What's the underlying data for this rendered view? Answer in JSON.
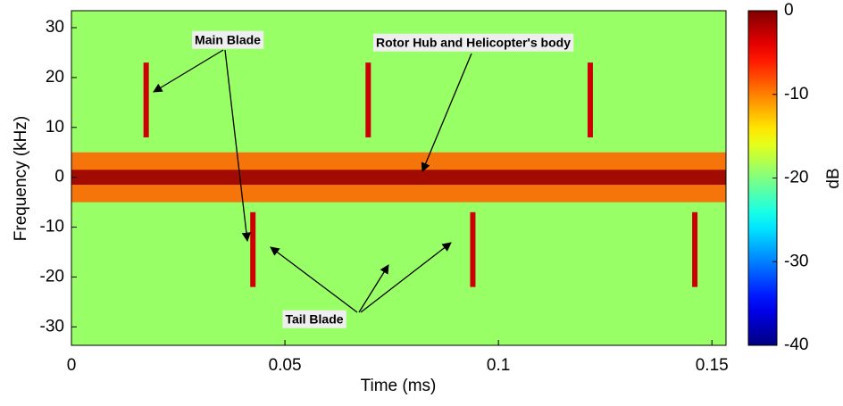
{
  "chart_data": {
    "type": "spectrogram",
    "xlabel": "Time (ms)",
    "ylabel": "Frequency (kHz)",
    "xlim": [
      0,
      0.1533
    ],
    "ylim": [
      -33.7,
      33.4
    ],
    "xticks": [
      0,
      0.05,
      0.1,
      0.15
    ],
    "yticks": [
      -30,
      -20,
      -10,
      0,
      10,
      20,
      30
    ],
    "colormap": "jet",
    "colorbar": {
      "label": "dB",
      "lim": [
        -40,
        0
      ],
      "ticks": [
        0,
        -10,
        -20,
        -30,
        -40
      ]
    },
    "background_db": -19,
    "bands": [
      {
        "y": [
          -5,
          5
        ],
        "db": -9
      },
      {
        "y": [
          -1.5,
          1.5
        ],
        "db": -1
      }
    ],
    "flashes": [
      {
        "x": 0.0175,
        "y": [
          8,
          23
        ],
        "db": -3
      },
      {
        "x": 0.0695,
        "y": [
          8,
          23
        ],
        "db": -3
      },
      {
        "x": 0.1215,
        "y": [
          8,
          23
        ],
        "db": -3
      },
      {
        "x": 0.0425,
        "y": [
          -22,
          -7
        ],
        "db": -3
      },
      {
        "x": 0.094,
        "y": [
          -22,
          -7
        ],
        "db": -3
      },
      {
        "x": 0.146,
        "y": [
          -22,
          -7
        ],
        "db": -3
      }
    ],
    "annotations": [
      {
        "text": "Main Blade"
      },
      {
        "text": "Rotor Hub and Helicopter's body"
      },
      {
        "text": "Tail Blade"
      }
    ]
  }
}
